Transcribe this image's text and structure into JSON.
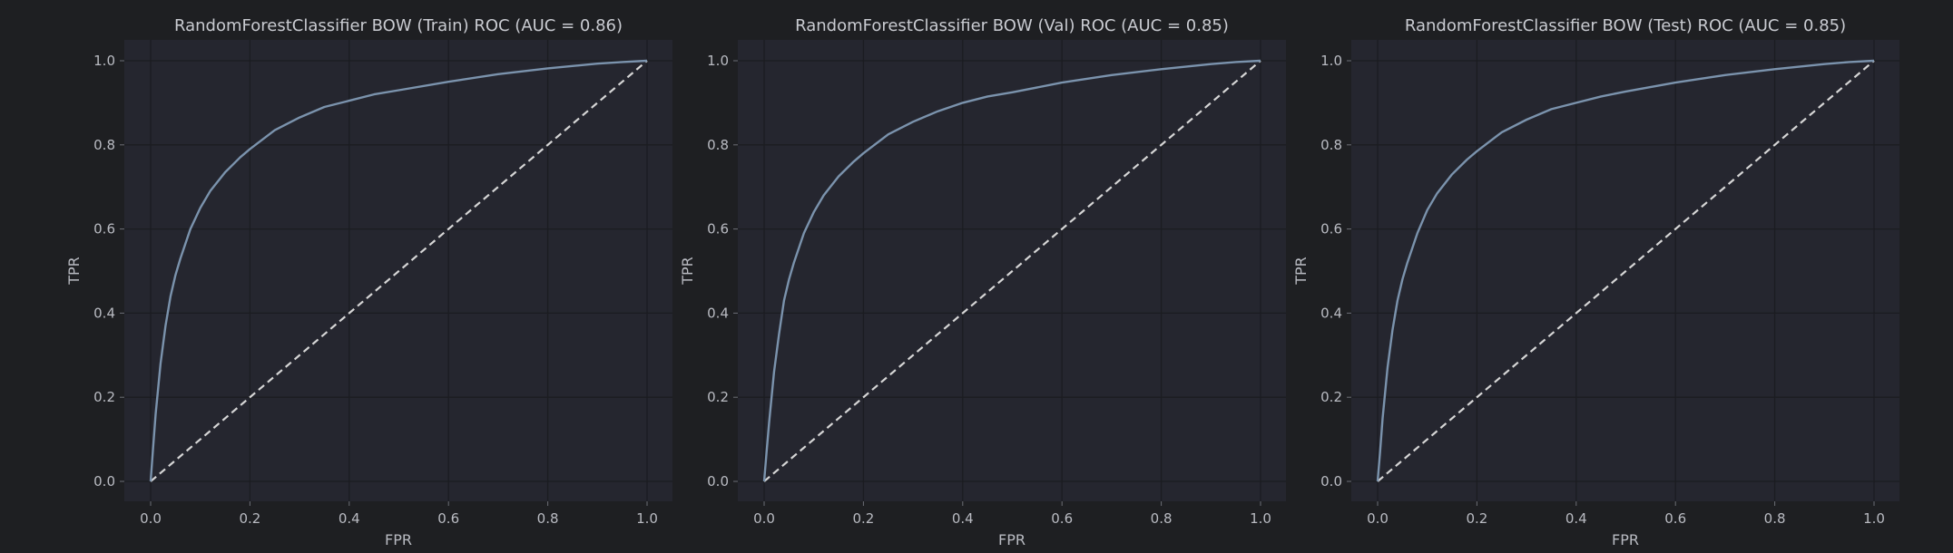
{
  "figure": {
    "background": "#1e1f22",
    "axes_background": "#25262f",
    "curve_color": "#7b93ad",
    "diagonal_color": "#d6d6d6"
  },
  "chart_data": [
    {
      "type": "line",
      "title": "RandomForestClassifier BOW (Train) ROC (AUC = 0.86)",
      "xlabel": "FPR",
      "ylabel": "TPR",
      "xlim": [
        0,
        1
      ],
      "ylim": [
        0,
        1
      ],
      "xticks": [
        "0.0",
        "0.2",
        "0.4",
        "0.6",
        "0.8",
        "1.0"
      ],
      "yticks": [
        "0.0",
        "0.2",
        "0.4",
        "0.6",
        "0.8",
        "1.0"
      ],
      "grid": true,
      "series": [
        {
          "x": [
            0,
            0.005,
            0.01,
            0.02,
            0.03,
            0.04,
            0.05,
            0.06,
            0.08,
            0.1,
            0.12,
            0.15,
            0.18,
            0.2,
            0.25,
            0.3,
            0.35,
            0.4,
            0.45,
            0.5,
            0.6,
            0.7,
            0.8,
            0.9,
            0.95,
            1.0
          ],
          "y": [
            0,
            0.08,
            0.16,
            0.28,
            0.37,
            0.44,
            0.49,
            0.53,
            0.6,
            0.65,
            0.69,
            0.735,
            0.77,
            0.79,
            0.835,
            0.865,
            0.89,
            0.905,
            0.92,
            0.93,
            0.95,
            0.968,
            0.982,
            0.993,
            0.997,
            1.0
          ]
        },
        {
          "x": [
            0,
            1
          ],
          "y": [
            0,
            1
          ],
          "style": "dashed"
        }
      ]
    },
    {
      "type": "line",
      "title": "RandomForestClassifier BOW (Val) ROC (AUC = 0.85)",
      "xlabel": "FPR",
      "ylabel": "TPR",
      "xlim": [
        0,
        1
      ],
      "ylim": [
        0,
        1
      ],
      "xticks": [
        "0.0",
        "0.2",
        "0.4",
        "0.6",
        "0.8",
        "1.0"
      ],
      "yticks": [
        "0.0",
        "0.2",
        "0.4",
        "0.6",
        "0.8",
        "1.0"
      ],
      "grid": true,
      "series": [
        {
          "x": [
            0,
            0.005,
            0.01,
            0.02,
            0.03,
            0.04,
            0.05,
            0.06,
            0.08,
            0.1,
            0.12,
            0.15,
            0.18,
            0.2,
            0.25,
            0.3,
            0.35,
            0.4,
            0.45,
            0.5,
            0.6,
            0.7,
            0.8,
            0.9,
            0.95,
            1.0
          ],
          "y": [
            0,
            0.07,
            0.14,
            0.26,
            0.35,
            0.43,
            0.48,
            0.52,
            0.59,
            0.64,
            0.68,
            0.725,
            0.76,
            0.78,
            0.825,
            0.855,
            0.88,
            0.9,
            0.915,
            0.925,
            0.948,
            0.966,
            0.98,
            0.992,
            0.997,
            1.0
          ]
        },
        {
          "x": [
            0,
            1
          ],
          "y": [
            0,
            1
          ],
          "style": "dashed"
        }
      ]
    },
    {
      "type": "line",
      "title": "RandomForestClassifier BOW (Test) ROC (AUC = 0.85)",
      "xlabel": "FPR",
      "ylabel": "TPR",
      "xlim": [
        0,
        1
      ],
      "ylim": [
        0,
        1
      ],
      "xticks": [
        "0.0",
        "0.2",
        "0.4",
        "0.6",
        "0.8",
        "1.0"
      ],
      "yticks": [
        "0.0",
        "0.2",
        "0.4",
        "0.6",
        "0.8",
        "1.0"
      ],
      "grid": true,
      "series": [
        {
          "x": [
            0,
            0.005,
            0.01,
            0.02,
            0.03,
            0.04,
            0.05,
            0.06,
            0.08,
            0.1,
            0.12,
            0.15,
            0.18,
            0.2,
            0.25,
            0.3,
            0.35,
            0.4,
            0.45,
            0.5,
            0.6,
            0.7,
            0.8,
            0.9,
            0.95,
            1.0
          ],
          "y": [
            0,
            0.07,
            0.15,
            0.27,
            0.36,
            0.43,
            0.48,
            0.52,
            0.59,
            0.645,
            0.685,
            0.73,
            0.765,
            0.785,
            0.83,
            0.86,
            0.885,
            0.9,
            0.915,
            0.927,
            0.948,
            0.966,
            0.98,
            0.992,
            0.997,
            1.0
          ]
        },
        {
          "x": [
            0,
            1
          ],
          "y": [
            0,
            1
          ],
          "style": "dashed"
        }
      ]
    }
  ]
}
